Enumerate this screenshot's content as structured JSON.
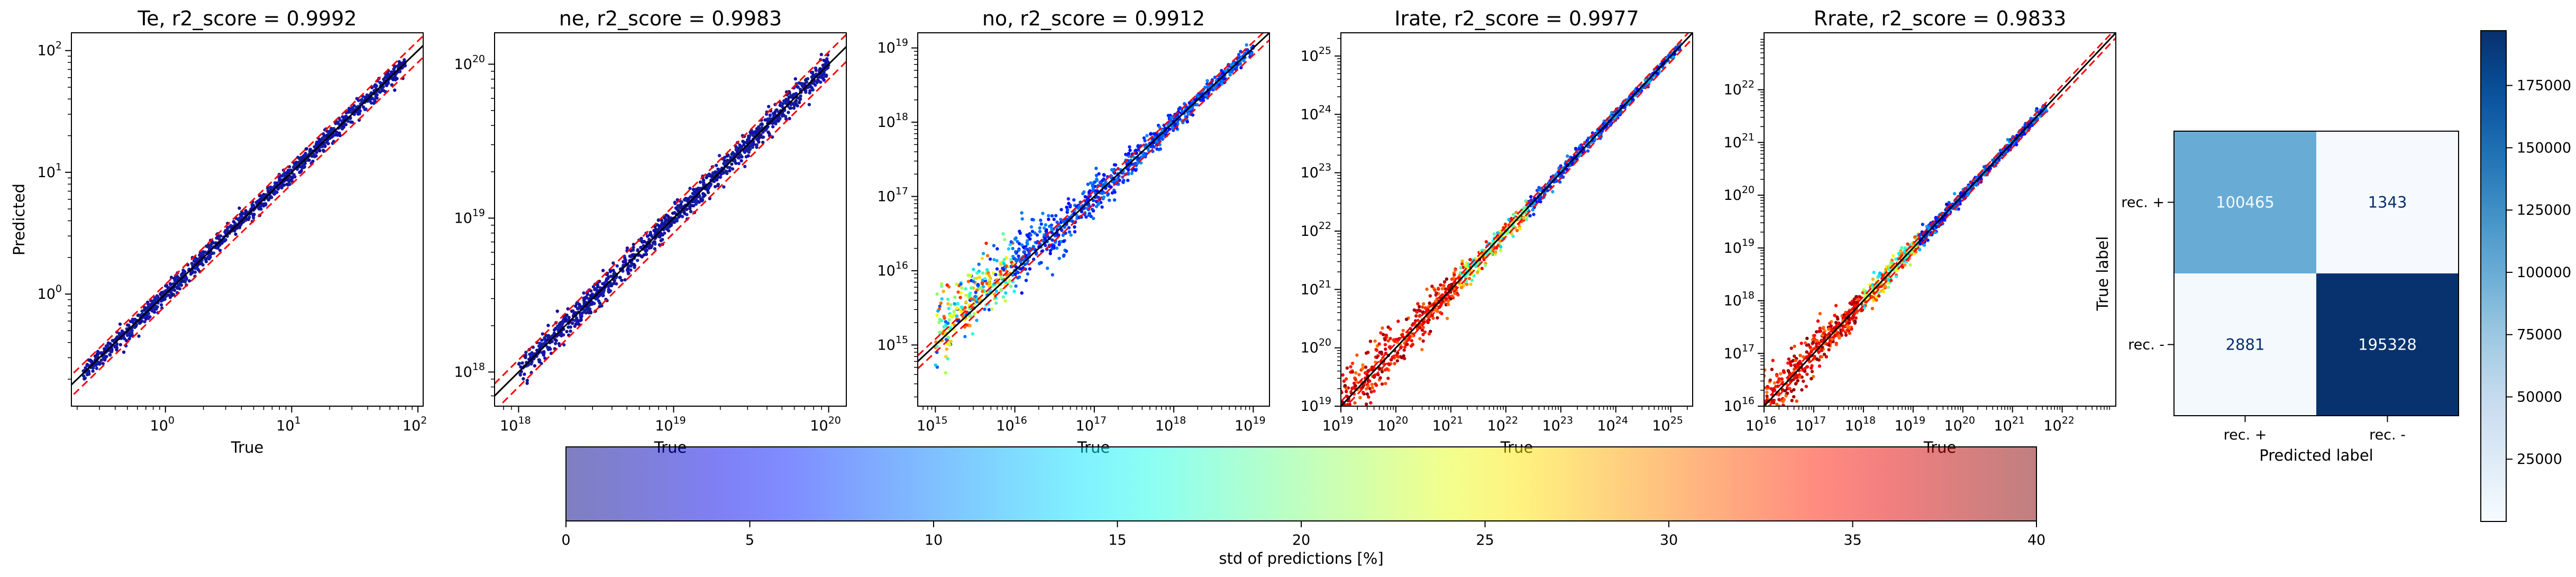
{
  "chart_data": [
    {
      "type": "scatter",
      "title": "Te, r2_score = 0.9992",
      "xlabel": "True",
      "ylabel": "Predicted",
      "scale": "log",
      "xlim": [
        0.18,
        110
      ],
      "ylim": [
        0.12,
        140
      ],
      "xticks": [
        {
          "base": "10",
          "exp": "0",
          "v": 1
        },
        {
          "base": "10",
          "exp": "1",
          "v": 10
        },
        {
          "base": "10",
          "exp": "2",
          "v": 100
        }
      ],
      "yticks": [
        {
          "base": "10",
          "exp": "0",
          "v": 1
        },
        {
          "base": "10",
          "exp": "1",
          "v": 10
        },
        {
          "base": "10",
          "exp": "2",
          "v": 100
        }
      ],
      "range": [
        0.22,
        80
      ],
      "scatter_spread": 0.035,
      "color_mode": "low",
      "bands": [
        1.2,
        0.8
      ]
    },
    {
      "type": "scatter",
      "title": "ne, r2_score = 0.9983",
      "xlabel": "True",
      "ylabel": "",
      "scale": "log",
      "xlim": [
        7e+17,
        1.3e+20
      ],
      "ylim": [
        6e+17,
        1.6e+20
      ],
      "xticks": [
        {
          "base": "10",
          "exp": "18",
          "v": 1e+18
        },
        {
          "base": "10",
          "exp": "19",
          "v": 1e+19
        },
        {
          "base": "10",
          "exp": "20",
          "v": 1e+20
        }
      ],
      "yticks": [
        {
          "base": "10",
          "exp": "18",
          "v": 1e+18
        },
        {
          "base": "10",
          "exp": "19",
          "v": 1e+19
        },
        {
          "base": "10",
          "exp": "20",
          "v": 1e+20
        }
      ],
      "range": [
        1e+18,
        1e+20
      ],
      "scatter_spread": 0.04,
      "color_mode": "low",
      "bands": [
        1.2,
        0.8
      ]
    },
    {
      "type": "scatter",
      "title": "no, r2_score = 0.9912",
      "xlabel": "True",
      "ylabel": "",
      "scale": "log",
      "xlim": [
        600000000000000.0,
        1.6e+19
      ],
      "ylim": [
        150000000000000.0,
        1.6e+19
      ],
      "xticks": [
        {
          "base": "10",
          "exp": "15",
          "v": 1000000000000000.0
        },
        {
          "base": "10",
          "exp": "16",
          "v": 1e+16
        },
        {
          "base": "10",
          "exp": "17",
          "v": 1e+17
        },
        {
          "base": "10",
          "exp": "18",
          "v": 1e+18
        },
        {
          "base": "10",
          "exp": "19",
          "v": 1e+19
        }
      ],
      "yticks": [
        {
          "base": "10",
          "exp": "15",
          "v": 1000000000000000.0
        },
        {
          "base": "10",
          "exp": "16",
          "v": 1e+16
        },
        {
          "base": "10",
          "exp": "17",
          "v": 1e+17
        },
        {
          "base": "10",
          "exp": "18",
          "v": 1e+18
        },
        {
          "base": "10",
          "exp": "19",
          "v": 1e+19
        }
      ],
      "range": [
        1000000000000000.0,
        1e+19
      ],
      "scatter_spread": 0.09,
      "color_mode": "no",
      "bands": [
        1.2,
        0.8
      ]
    },
    {
      "type": "scatter",
      "title": "Irate, r2_score = 0.9977",
      "xlabel": "True",
      "ylabel": "",
      "scale": "log",
      "xlim": [
        1e+19,
        2.5e+25
      ],
      "ylim": [
        1e+19,
        2.5e+25
      ],
      "xticks": [
        {
          "base": "10",
          "exp": "19",
          "v": 1e+19
        },
        {
          "base": "10",
          "exp": "20",
          "v": 1e+20
        },
        {
          "base": "10",
          "exp": "21",
          "v": 1e+21
        },
        {
          "base": "10",
          "exp": "22",
          "v": 1e+22
        },
        {
          "base": "10",
          "exp": "23",
          "v": 1e+23
        },
        {
          "base": "10",
          "exp": "24",
          "v": 1e+24
        },
        {
          "base": "10",
          "exp": "25",
          "v": 1e+25
        }
      ],
      "yticks": [
        {
          "base": "10",
          "exp": "19",
          "v": 1e+19
        },
        {
          "base": "10",
          "exp": "20",
          "v": 1e+20
        },
        {
          "base": "10",
          "exp": "21",
          "v": 1e+21
        },
        {
          "base": "10",
          "exp": "22",
          "v": 1e+22
        },
        {
          "base": "10",
          "exp": "23",
          "v": 1e+23
        },
        {
          "base": "10",
          "exp": "24",
          "v": 1e+24
        },
        {
          "base": "10",
          "exp": "25",
          "v": 1e+25
        }
      ],
      "range": [
        1e+19,
        1.5e+25
      ],
      "scatter_spread": 0.08,
      "color_mode": "rate",
      "bands": [
        1.2,
        0.8
      ]
    },
    {
      "type": "scatter",
      "title": "Rrate, r2_score = 0.9833",
      "xlabel": "True",
      "ylabel": "",
      "scale": "log",
      "xlim": [
        1e+16,
        1.2e+23
      ],
      "ylim": [
        1e+16,
        1.2e+23
      ],
      "xticks": [
        {
          "base": "10",
          "exp": "16",
          "v": 1e+16
        },
        {
          "base": "10",
          "exp": "17",
          "v": 1e+17
        },
        {
          "base": "10",
          "exp": "18",
          "v": 1e+18
        },
        {
          "base": "10",
          "exp": "19",
          "v": 1e+19
        },
        {
          "base": "10",
          "exp": "20",
          "v": 1e+20
        },
        {
          "base": "10",
          "exp": "21",
          "v": 1e+21
        },
        {
          "base": "10",
          "exp": "22",
          "v": 1e+22
        }
      ],
      "yticks": [
        {
          "base": "10",
          "exp": "16",
          "v": 1e+16
        },
        {
          "base": "10",
          "exp": "17",
          "v": 1e+17
        },
        {
          "base": "10",
          "exp": "18",
          "v": 1e+18
        },
        {
          "base": "10",
          "exp": "19",
          "v": 1e+19
        },
        {
          "base": "10",
          "exp": "20",
          "v": 1e+20
        },
        {
          "base": "10",
          "exp": "21",
          "v": 1e+21
        },
        {
          "base": "10",
          "exp": "22",
          "v": 1e+22
        }
      ],
      "range": [
        1e+16,
        5e+21
      ],
      "scatter_spread": 0.09,
      "color_mode": "rate",
      "bands": [
        1.2,
        0.8
      ]
    },
    {
      "type": "heatmap",
      "xlabel": "Predicted label",
      "ylabel": "True label",
      "x_categories": [
        "rec. +",
        "rec. -"
      ],
      "y_categories": [
        "rec. +",
        "rec. -"
      ],
      "values": [
        [
          100465,
          1343
        ],
        [
          2881,
          195328
        ]
      ],
      "colormap": "Blues",
      "colorbar_range": [
        0,
        197000
      ],
      "colorbar_ticks": [
        "25000",
        "50000",
        "75000",
        "100000",
        "125000",
        "150000",
        "175000"
      ],
      "colorbar_tick_values": [
        25000,
        50000,
        75000,
        100000,
        125000,
        150000,
        175000
      ]
    }
  ],
  "colorbar": {
    "label": "std of predictions [%]",
    "range": [
      0,
      40
    ],
    "ticks": [
      "0",
      "5",
      "10",
      "15",
      "20",
      "25",
      "30",
      "35",
      "40"
    ],
    "colormap": "jet",
    "alpha": 0.5
  },
  "colors": {
    "identity_line": "#000000",
    "band_line": "#ff0000",
    "low_std": "#00008b"
  }
}
